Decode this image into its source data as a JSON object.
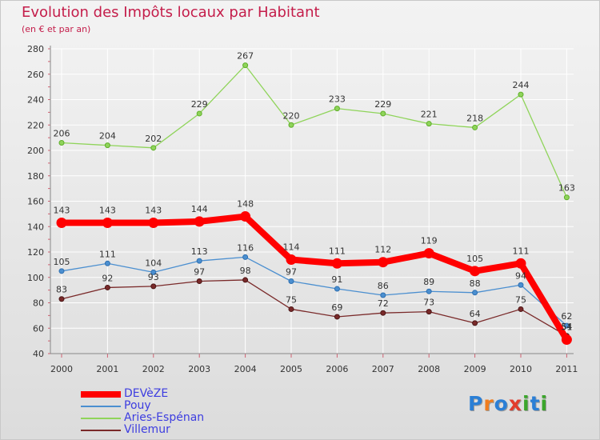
{
  "title": "Evolution des Impôts locaux par Habitant",
  "subtitle": "(en € et par an)",
  "logo": {
    "letters": [
      "P",
      "r",
      "o",
      "x",
      "i",
      "t",
      "i"
    ],
    "colors": [
      "#2b7fd6",
      "#f07d1e",
      "#2b7fd6",
      "#e23c2c",
      "#3ba62b",
      "#2b7fd6",
      "#3ba62b"
    ]
  },
  "chart_data": {
    "type": "line",
    "x": [
      "2000",
      "2001",
      "2002",
      "2003",
      "2004",
      "2005",
      "2006",
      "2007",
      "2008",
      "2009",
      "2010",
      "2011"
    ],
    "ylim": [
      40,
      280
    ],
    "yticks": [
      40,
      60,
      80,
      100,
      120,
      140,
      160,
      180,
      200,
      220,
      240,
      260,
      280
    ],
    "grid": true,
    "legend_position": "bottom-left",
    "series": [
      {
        "name": "DEVèZE",
        "color": "#ff0000",
        "values": [
          143,
          143,
          143,
          144,
          148,
          114,
          111,
          112,
          119,
          105,
          111,
          51
        ],
        "labels": [
          "143",
          "143",
          "143",
          "144",
          "148",
          "114",
          "111",
          "112",
          "119",
          "105",
          "111",
          "51"
        ]
      },
      {
        "name": "Pouy",
        "color": "#4b8fd0",
        "values": [
          105,
          111,
          104,
          113,
          116,
          97,
          91,
          86,
          89,
          88,
          94,
          62
        ],
        "labels": [
          "105",
          "111",
          "104",
          "113",
          "116",
          "97",
          "91",
          "86",
          "89",
          "88",
          "94",
          "62"
        ]
      },
      {
        "name": "Aries-Espénan",
        "color": "#8fd45a",
        "values": [
          206,
          204,
          202,
          229,
          267,
          220,
          233,
          229,
          221,
          218,
          244,
          163
        ],
        "labels": [
          "206",
          "204",
          "202",
          "229",
          "267",
          "220",
          "233",
          "229",
          "221",
          "218",
          "244",
          "163"
        ]
      },
      {
        "name": "Villemur",
        "color": "#7a2a2a",
        "values": [
          83,
          92,
          93,
          97,
          98,
          75,
          69,
          72,
          73,
          64,
          75,
          54
        ],
        "labels": [
          "83",
          "92",
          "93",
          "97",
          "98",
          "75",
          "69",
          "72",
          "73",
          "64",
          "75",
          "54"
        ]
      }
    ]
  }
}
